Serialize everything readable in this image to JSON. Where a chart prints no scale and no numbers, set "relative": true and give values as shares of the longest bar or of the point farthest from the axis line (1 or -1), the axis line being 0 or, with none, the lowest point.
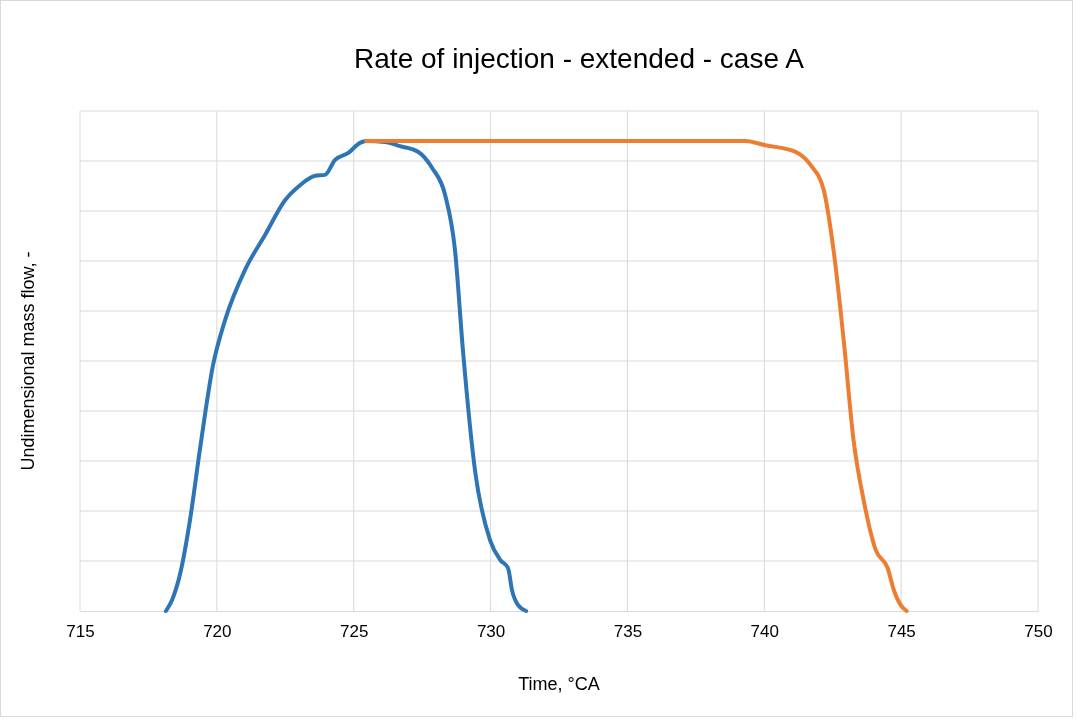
{
  "chart_data": {
    "type": "line",
    "title": "Rate of injection - extended - case A",
    "xlabel": "Time, °CA",
    "ylabel": "Undimensional mass flow, -",
    "relative": true,
    "grid": true,
    "xlim": [
      715,
      750
    ],
    "xticks": [
      715,
      720,
      725,
      730,
      735,
      740,
      745,
      750
    ],
    "line_style": "solid",
    "marker": "none",
    "series": [
      {
        "color": "#2e75b6",
        "x": [
          718.14,
          718.36,
          718.65,
          719.02,
          719.38,
          719.86,
          720.3,
          721.03,
          721.76,
          722.49,
          723.04,
          723.59,
          723.95,
          724.32,
          724.79,
          725.23,
          725.45,
          726.14,
          726.69,
          727.35,
          727.86,
          728.34,
          728.7,
          728.99,
          729.43,
          729.98,
          730.35,
          730.64,
          730.78,
          731.0,
          731.3
        ],
        "values": [
          0,
          0.023,
          0.077,
          0.194,
          0.343,
          0.523,
          0.619,
          0.726,
          0.8,
          0.874,
          0.906,
          0.926,
          0.928,
          0.96,
          0.974,
          0.996,
          1,
          0.998,
          0.989,
          0.977,
          0.943,
          0.885,
          0.768,
          0.555,
          0.3,
          0.151,
          0.109,
          0.091,
          0.045,
          0.013,
          0
        ]
      },
      {
        "color": "#ed7d31",
        "x": [
          725.45,
          739.3,
          740.04,
          741.14,
          741.69,
          742.17,
          742.53,
          742.9,
          743.26,
          743.63,
          744.07,
          744.51,
          744.73,
          744.98,
          745.2
        ],
        "values": [
          1,
          1,
          0.991,
          0.977,
          0.949,
          0.896,
          0.768,
          0.577,
          0.364,
          0.236,
          0.13,
          0.091,
          0.045,
          0.013,
          0
        ]
      }
    ]
  }
}
